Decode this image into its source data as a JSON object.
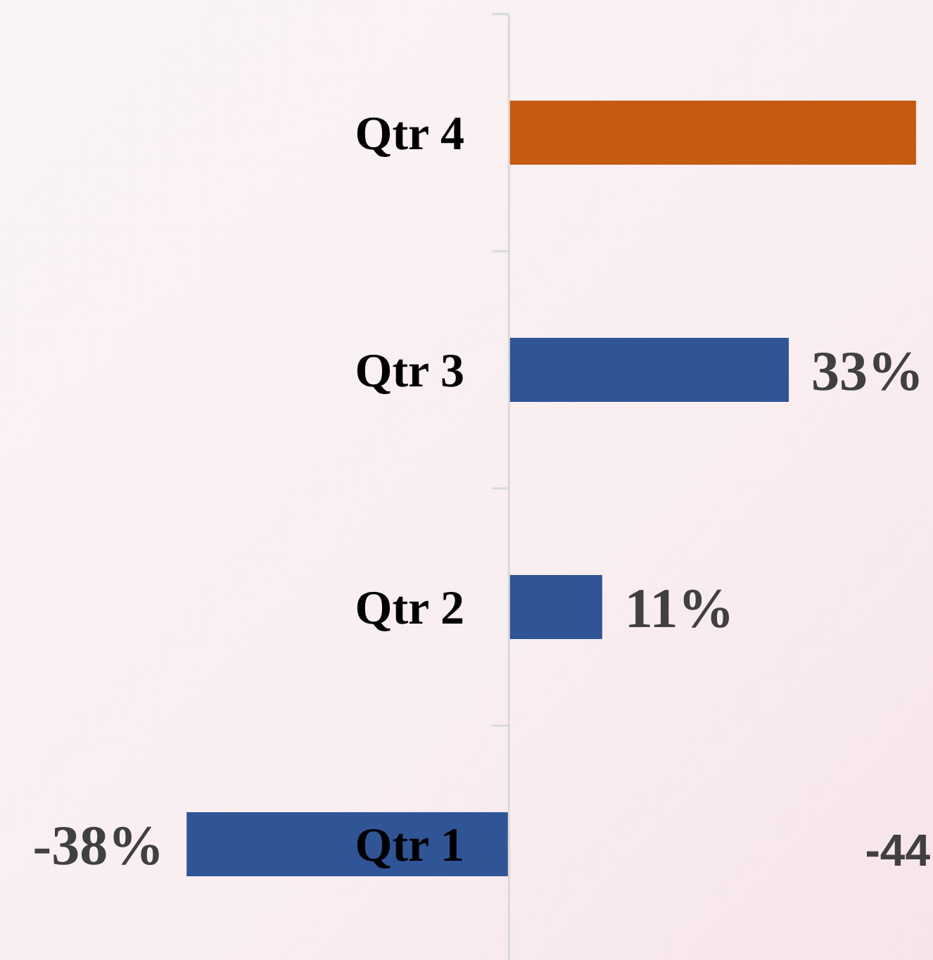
{
  "chart_data": {
    "type": "bar",
    "orientation": "horizontal",
    "categories": [
      "Qtr 4",
      "Qtr 3",
      "Qtr 2",
      "Qtr 1"
    ],
    "values": [
      48,
      33,
      11,
      -38
    ],
    "colors": [
      "#c55a11",
      "#2f5597",
      "#2f5597",
      "#2f5597"
    ],
    "value_labels": [
      null,
      "33%",
      "11%",
      "-38%"
    ],
    "xlim": [
      -60,
      50
    ],
    "tick_labels": "y",
    "annotations": [
      "-44"
    ]
  }
}
